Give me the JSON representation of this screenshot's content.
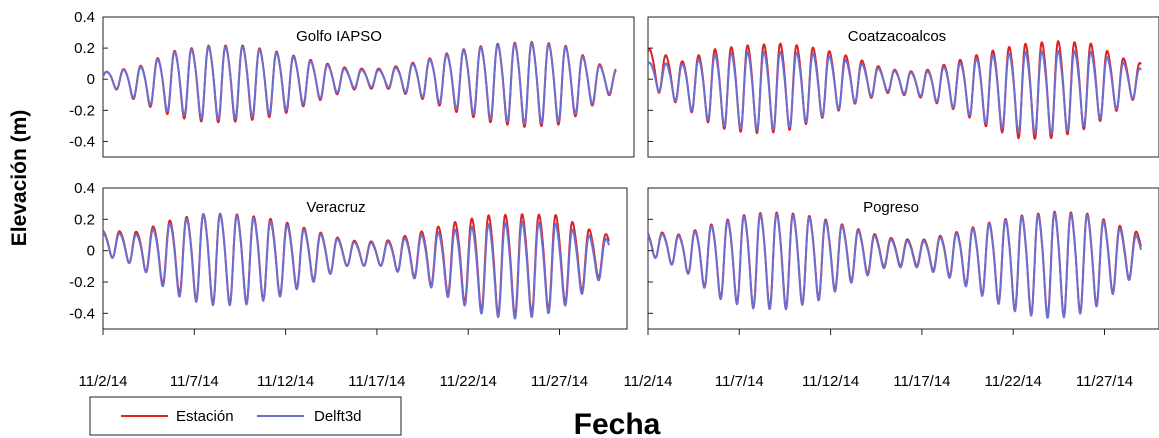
{
  "chart_data": {
    "type": "line",
    "ylabel": "Elevación (m)",
    "xlabel": "Fecha",
    "x_tick_labels": [
      "11/2/14",
      "11/7/14",
      "11/12/14",
      "11/17/14",
      "11/22/14",
      "11/27/14"
    ],
    "xlim_days": [
      0,
      29
    ],
    "ylim": [
      -0.5,
      0.4
    ],
    "y_tick_labels": [
      "-0.4",
      "-0.2",
      "0",
      "0.2",
      "0.4"
    ],
    "y_ticks": [
      -0.4,
      -0.2,
      0,
      0.2,
      0.4
    ],
    "legend": {
      "placement": "bottom-left",
      "entries": [
        {
          "label": "Estación",
          "color": "#dd2222"
        },
        {
          "label": "Delft3d",
          "color": "#6a6fd0"
        }
      ]
    },
    "panels": [
      {
        "title": "Golfo IAPSO",
        "series": [
          {
            "name": "Estación",
            "color": "#dd2222",
            "envelope_days": [
              0,
              2,
              4,
              6,
              8,
              10,
              12,
              14,
              16,
              18,
              20,
              22,
              24,
              26,
              28,
              29
            ],
            "envelope_max": [
              0.05,
              0.1,
              0.22,
              0.26,
              0.26,
              0.21,
              0.14,
              0.08,
              0.08,
              0.14,
              0.22,
              0.27,
              0.29,
              0.27,
              0.12,
              0.08
            ],
            "envelope_min": [
              -0.02,
              -0.15,
              -0.25,
              -0.29,
              -0.28,
              -0.24,
              -0.15,
              -0.07,
              -0.06,
              -0.13,
              -0.22,
              -0.29,
              -0.32,
              -0.3,
              -0.15,
              -0.08
            ]
          },
          {
            "name": "Delft3d",
            "color": "#6a6fd0",
            "envelope_days": [
              0,
              2,
              4,
              6,
              8,
              10,
              12,
              14,
              16,
              18,
              20,
              22,
              24,
              26,
              28,
              29
            ],
            "envelope_max": [
              0.05,
              0.09,
              0.21,
              0.25,
              0.25,
              0.2,
              0.13,
              0.07,
              0.07,
              0.13,
              0.21,
              0.26,
              0.28,
              0.26,
              0.11,
              0.07
            ],
            "envelope_min": [
              -0.02,
              -0.14,
              -0.23,
              -0.27,
              -0.26,
              -0.22,
              -0.14,
              -0.06,
              -0.05,
              -0.12,
              -0.2,
              -0.27,
              -0.3,
              -0.28,
              -0.14,
              -0.07
            ]
          }
        ]
      },
      {
        "title": "Coatzacoalcos",
        "series": [
          {
            "name": "Estación",
            "color": "#dd2222",
            "envelope_days": [
              0,
              2,
              4,
              6,
              8,
              10,
              12,
              14,
              16,
              18,
              20,
              22,
              24,
              26,
              28,
              29
            ],
            "envelope_max": [
              0.22,
              0.14,
              0.24,
              0.27,
              0.28,
              0.24,
              0.17,
              0.08,
              0.06,
              0.14,
              0.22,
              0.28,
              0.3,
              0.28,
              0.16,
              0.12
            ],
            "envelope_min": [
              -0.05,
              -0.18,
              -0.32,
              -0.36,
              -0.35,
              -0.27,
              -0.17,
              -0.09,
              -0.12,
              -0.2,
              -0.32,
              -0.4,
              -0.39,
              -0.32,
              -0.18,
              -0.1
            ]
          },
          {
            "name": "Delft3d",
            "color": "#6a6fd0",
            "envelope_days": [
              0,
              2,
              4,
              6,
              8,
              10,
              12,
              14,
              16,
              18,
              20,
              22,
              24,
              26,
              28,
              29
            ],
            "envelope_max": [
              0.12,
              0.12,
              0.2,
              0.22,
              0.22,
              0.2,
              0.14,
              0.07,
              0.05,
              0.12,
              0.19,
              0.22,
              0.23,
              0.22,
              0.13,
              0.08
            ],
            "envelope_min": [
              -0.04,
              -0.17,
              -0.3,
              -0.34,
              -0.33,
              -0.26,
              -0.16,
              -0.08,
              -0.11,
              -0.19,
              -0.3,
              -0.36,
              -0.36,
              -0.3,
              -0.17,
              -0.09
            ]
          }
        ]
      },
      {
        "title": "Veracruz",
        "series": [
          {
            "name": "Estación",
            "color": "#dd2222",
            "envelope_days": [
              0,
              2,
              4,
              6,
              8,
              10,
              12,
              14,
              16,
              18,
              20,
              22,
              24,
              26,
              28,
              29
            ],
            "envelope_max": [
              0.14,
              0.14,
              0.24,
              0.29,
              0.28,
              0.24,
              0.16,
              0.08,
              0.07,
              0.14,
              0.22,
              0.28,
              0.29,
              0.28,
              0.16,
              0.12
            ],
            "envelope_min": [
              -0.03,
              -0.1,
              -0.27,
              -0.35,
              -0.35,
              -0.3,
              -0.2,
              -0.1,
              -0.1,
              -0.18,
              -0.3,
              -0.41,
              -0.43,
              -0.38,
              -0.22,
              -0.12
            ]
          },
          {
            "name": "Delft3d",
            "color": "#6a6fd0",
            "envelope_days": [
              0,
              2,
              4,
              6,
              8,
              10,
              12,
              14,
              16,
              18,
              20,
              22,
              24,
              26,
              28,
              29
            ],
            "envelope_max": [
              0.13,
              0.12,
              0.22,
              0.29,
              0.27,
              0.22,
              0.15,
              0.07,
              0.06,
              0.12,
              0.17,
              0.22,
              0.24,
              0.22,
              0.12,
              0.09
            ],
            "envelope_min": [
              -0.03,
              -0.1,
              -0.29,
              -0.36,
              -0.36,
              -0.31,
              -0.21,
              -0.1,
              -0.1,
              -0.19,
              -0.32,
              -0.43,
              -0.45,
              -0.4,
              -0.24,
              -0.13
            ]
          }
        ]
      },
      {
        "title": "Pogreso",
        "series": [
          {
            "name": "Estación",
            "color": "#dd2222",
            "envelope_days": [
              0,
              2,
              4,
              6,
              8,
              10,
              12,
              14,
              16,
              18,
              20,
              22,
              24,
              26,
              28,
              29
            ],
            "envelope_max": [
              0.14,
              0.12,
              0.22,
              0.29,
              0.3,
              0.26,
              0.18,
              0.1,
              0.08,
              0.14,
              0.22,
              0.28,
              0.31,
              0.29,
              0.18,
              0.13
            ],
            "envelope_min": [
              -0.03,
              -0.12,
              -0.3,
              -0.37,
              -0.38,
              -0.32,
              -0.2,
              -0.1,
              -0.1,
              -0.18,
              -0.31,
              -0.41,
              -0.44,
              -0.39,
              -0.22,
              -0.1
            ]
          },
          {
            "name": "Delft3d",
            "color": "#6a6fd0",
            "envelope_days": [
              0,
              2,
              4,
              6,
              8,
              10,
              12,
              14,
              16,
              18,
              20,
              22,
              24,
              26,
              28,
              29
            ],
            "envelope_max": [
              0.13,
              0.11,
              0.21,
              0.28,
              0.29,
              0.25,
              0.17,
              0.09,
              0.07,
              0.13,
              0.21,
              0.27,
              0.3,
              0.28,
              0.16,
              0.1
            ],
            "envelope_min": [
              -0.03,
              -0.12,
              -0.31,
              -0.38,
              -0.39,
              -0.33,
              -0.21,
              -0.11,
              -0.11,
              -0.19,
              -0.32,
              -0.42,
              -0.45,
              -0.4,
              -0.23,
              -0.11
            ]
          }
        ]
      }
    ]
  }
}
